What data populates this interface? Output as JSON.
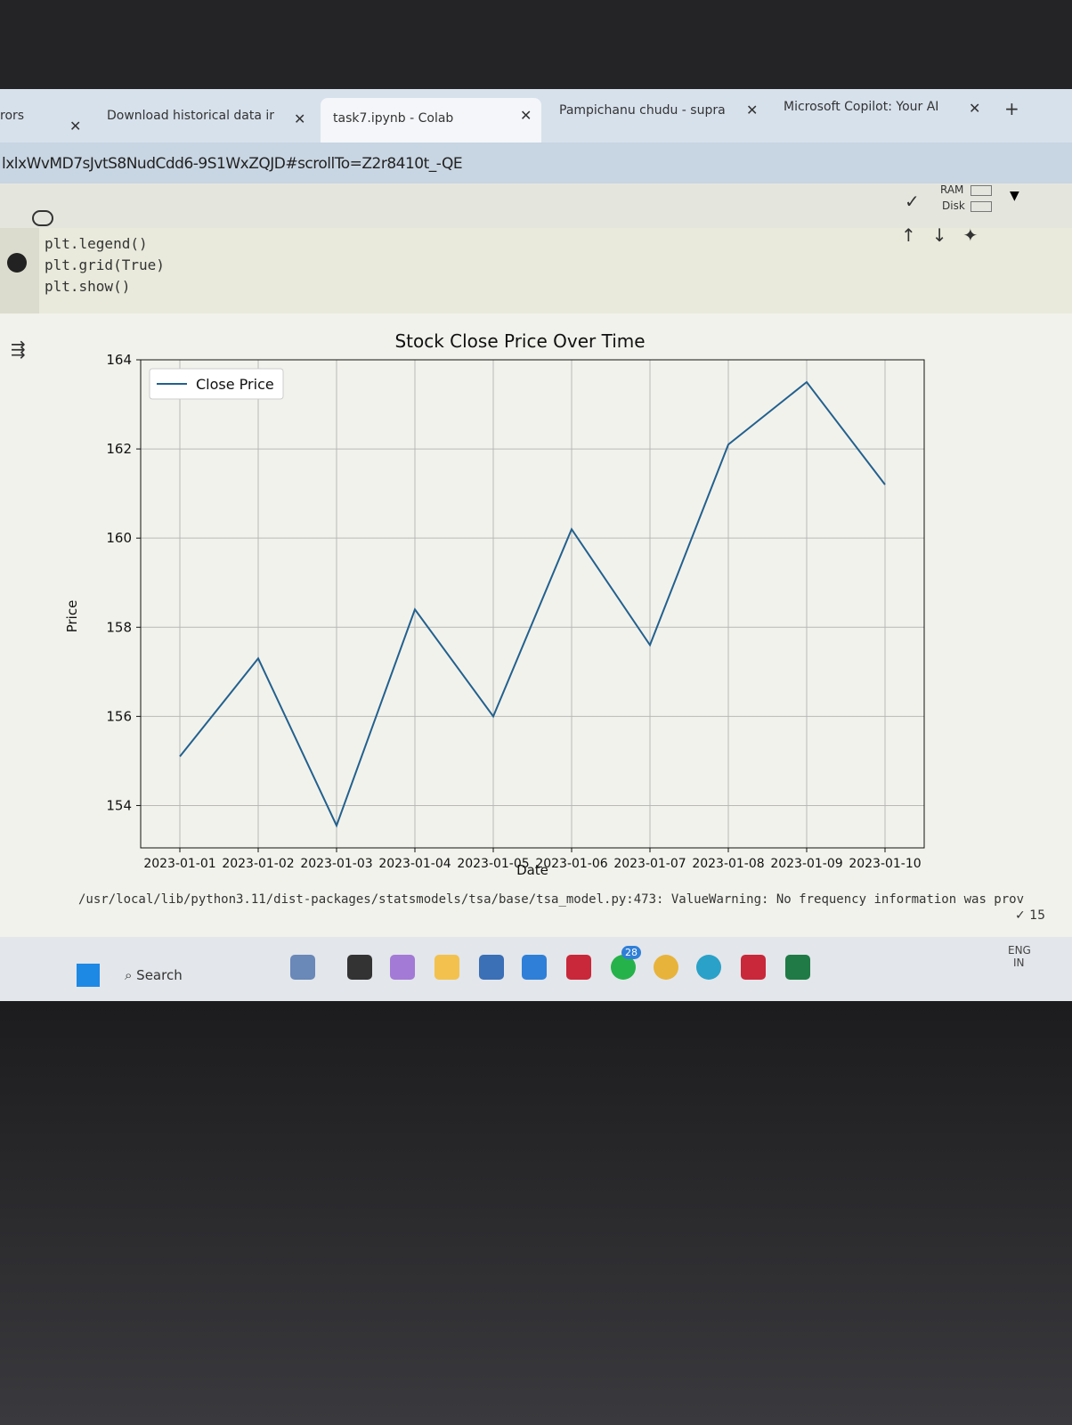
{
  "browser": {
    "tabs": [
      "rors",
      "Download historical data ir",
      "task7.ipynb - Colab",
      "Pampichanu chudu - supra",
      "Microsoft Copilot: Your AI"
    ],
    "url": "lxlxWvMD7sJvtS8NudCdd6-9S1WxZQJD#scrollTo=Z2r8410t_-QE"
  },
  "colab": {
    "ram_label": "RAM",
    "disk_label": "Disk",
    "code": [
      "plt.legend()",
      "plt.grid(True)",
      "plt.show()"
    ],
    "warning": "/usr/local/lib/python3.11/dist-packages/statsmodels/tsa/base/tsa_model.py:473: ValueWarning: No frequency information was prov",
    "status": "15"
  },
  "chart_data": {
    "type": "line",
    "title": "Stock Close Price Over Time",
    "x_label": "Date",
    "y_label": "Price",
    "categories": [
      "2023-01-01",
      "2023-01-02",
      "2023-01-03",
      "2023-01-04",
      "2023-01-05",
      "2023-01-06",
      "2023-01-07",
      "2023-01-08",
      "2023-01-09",
      "2023-01-10"
    ],
    "series": [
      {
        "name": "Close Price",
        "color": "#22618e",
        "values": [
          155.1,
          157.3,
          153.55,
          158.4,
          156.0,
          160.2,
          157.6,
          162.1,
          163.5,
          161.2
        ]
      }
    ],
    "ylim": [
      153.05,
      164.0
    ],
    "yticks": [
      154,
      156,
      158,
      160,
      162,
      164
    ],
    "grid": true,
    "legend": "upper-left"
  },
  "taskbar": {
    "search": "Search",
    "badge": "28",
    "language": [
      "ENG",
      "IN"
    ]
  }
}
